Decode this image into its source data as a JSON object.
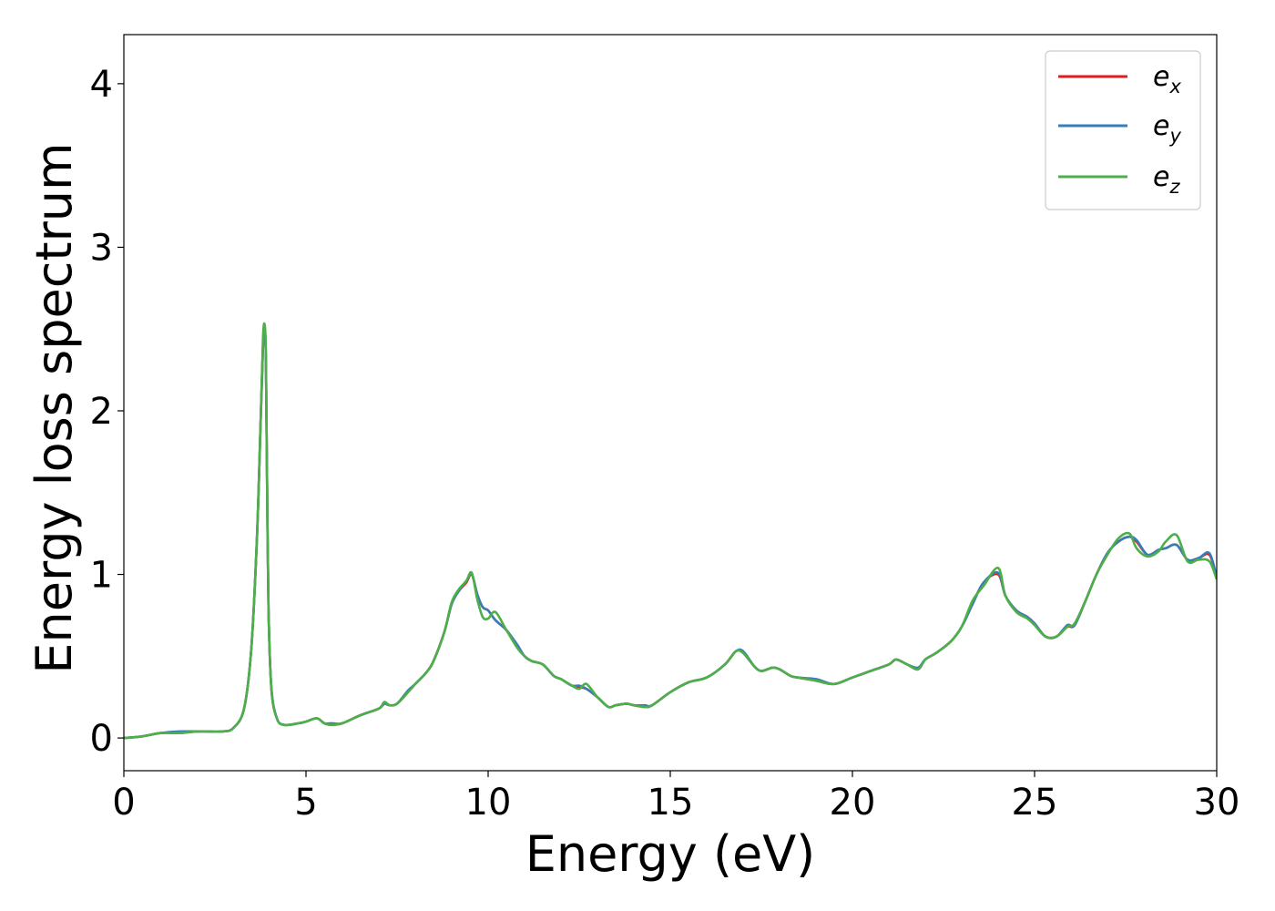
{
  "chart_data": {
    "type": "line",
    "xlabel": "Energy (eV)",
    "ylabel": "Energy loss spectrum",
    "xlim": [
      0,
      30
    ],
    "ylim": [
      -0.2,
      4.3
    ],
    "xticks": [
      0,
      5,
      10,
      15,
      20,
      25,
      30
    ],
    "yticks": [
      0,
      1,
      2,
      3,
      4
    ],
    "grid": false,
    "legend_position": "top-right",
    "series": [
      {
        "name": "e",
        "subscript": "x",
        "color": "#e41a1c"
      },
      {
        "name": "e",
        "subscript": "y",
        "color": "#377eb8"
      },
      {
        "name": "e",
        "subscript": "z",
        "color": "#4daf4a"
      }
    ],
    "x": [
      0,
      0.5,
      1.0,
      1.5,
      2.0,
      2.3,
      2.7,
      3.0,
      3.3,
      3.5,
      3.65,
      3.75,
      3.82,
      3.87,
      3.9,
      3.93,
      3.97,
      4.05,
      4.2,
      4.4,
      4.8,
      5.0,
      5.3,
      5.5,
      5.7,
      6.0,
      6.5,
      7.0,
      7.15,
      7.3,
      7.5,
      7.8,
      8.0,
      8.3,
      8.5,
      8.8,
      9.0,
      9.2,
      9.4,
      9.55,
      9.7,
      9.85,
      10.0,
      10.2,
      10.5,
      10.8,
      11.0,
      11.2,
      11.5,
      11.8,
      12.0,
      12.3,
      12.5,
      12.7,
      13.0,
      13.3,
      13.5,
      13.8,
      14.0,
      14.3,
      14.5,
      15.0,
      15.5,
      16.0,
      16.5,
      16.8,
      17.0,
      17.3,
      17.5,
      17.8,
      18.0,
      18.3,
      18.5,
      19.0,
      19.5,
      20.0,
      20.5,
      21.0,
      21.2,
      21.5,
      21.8,
      22.0,
      22.3,
      22.7,
      23.0,
      23.3,
      23.6,
      24.0,
      24.2,
      24.5,
      24.8,
      25.0,
      25.3,
      25.6,
      25.9,
      26.1,
      26.4,
      26.7,
      27.0,
      27.3,
      27.6,
      27.8,
      28.1,
      28.4,
      28.6,
      28.9,
      29.2,
      29.5,
      29.8,
      30.0
    ],
    "y_common": [
      0.0,
      0.01,
      0.03,
      0.03,
      0.04,
      0.04,
      0.04,
      0.06,
      0.18,
      0.55,
      1.2,
      1.9,
      2.4,
      2.5,
      2.3,
      1.6,
      0.8,
      0.3,
      0.12,
      0.08,
      0.09,
      0.1,
      0.12,
      0.09,
      0.08,
      0.09,
      0.14,
      0.18,
      0.21,
      0.2,
      0.21,
      0.28,
      0.33,
      0.4,
      0.47,
      0.65,
      0.82,
      0.9,
      0.95,
      1.0,
      0.88,
      0.8,
      0.78,
      0.72,
      0.66,
      0.56,
      0.5,
      0.47,
      0.45,
      0.38,
      0.36,
      0.32,
      0.31,
      0.3,
      0.25,
      0.19,
      0.2,
      0.21,
      0.2,
      0.19,
      0.2,
      0.28,
      0.34,
      0.37,
      0.45,
      0.53,
      0.52,
      0.44,
      0.41,
      0.43,
      0.42,
      0.38,
      0.37,
      0.35,
      0.33,
      0.37,
      0.41,
      0.45,
      0.48,
      0.45,
      0.42,
      0.48,
      0.52,
      0.59,
      0.68,
      0.82,
      0.95,
      1.0,
      0.87,
      0.78,
      0.74,
      0.7,
      0.62,
      0.62,
      0.68,
      0.69,
      0.84,
      1.0,
      1.13,
      1.2,
      1.23,
      1.2,
      1.12,
      1.15,
      1.16,
      1.18,
      1.09,
      1.1,
      1.12,
      0.98
    ],
    "y_z": [
      0.0,
      0.01,
      0.03,
      0.03,
      0.04,
      0.04,
      0.04,
      0.06,
      0.18,
      0.55,
      1.2,
      1.9,
      2.45,
      2.52,
      2.33,
      1.6,
      0.8,
      0.3,
      0.12,
      0.08,
      0.09,
      0.1,
      0.12,
      0.09,
      0.08,
      0.09,
      0.14,
      0.18,
      0.22,
      0.2,
      0.21,
      0.28,
      0.33,
      0.4,
      0.47,
      0.65,
      0.83,
      0.91,
      0.96,
      1.01,
      0.85,
      0.74,
      0.73,
      0.77,
      0.66,
      0.55,
      0.5,
      0.47,
      0.45,
      0.38,
      0.36,
      0.32,
      0.3,
      0.33,
      0.25,
      0.19,
      0.2,
      0.21,
      0.2,
      0.19,
      0.2,
      0.28,
      0.34,
      0.37,
      0.45,
      0.53,
      0.52,
      0.44,
      0.41,
      0.43,
      0.42,
      0.38,
      0.37,
      0.35,
      0.33,
      0.37,
      0.41,
      0.45,
      0.48,
      0.45,
      0.42,
      0.48,
      0.52,
      0.59,
      0.68,
      0.84,
      0.93,
      1.04,
      0.87,
      0.77,
      0.73,
      0.69,
      0.62,
      0.62,
      0.68,
      0.7,
      0.84,
      1.0,
      1.12,
      1.22,
      1.25,
      1.16,
      1.11,
      1.14,
      1.2,
      1.24,
      1.08,
      1.09,
      1.08,
      0.97
    ]
  }
}
